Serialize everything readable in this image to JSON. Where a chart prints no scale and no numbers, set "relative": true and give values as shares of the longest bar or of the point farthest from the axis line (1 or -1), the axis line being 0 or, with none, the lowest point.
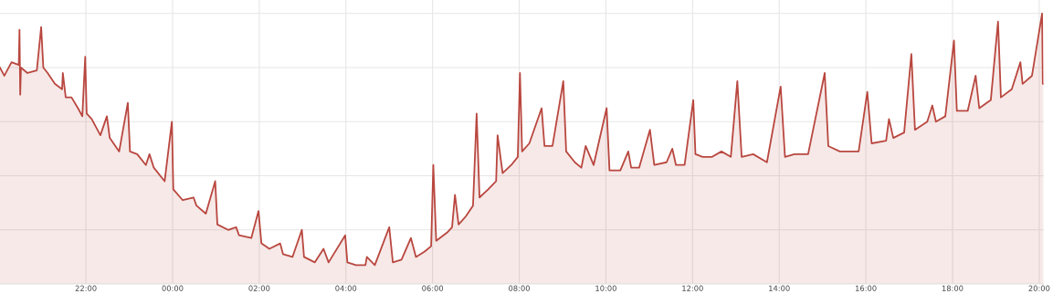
{
  "chart_data": {
    "type": "area",
    "relative": true,
    "grid": true,
    "xlim": [
      "2000-01-01T20:01",
      "2000-01-02T20:06"
    ],
    "xticks": [
      {
        "value": "2000-01-01T22:00",
        "label": "22:00"
      },
      {
        "value": "2000-01-02T00:00",
        "label": "00:00"
      },
      {
        "value": "2000-01-02T02:00",
        "label": "02:00"
      },
      {
        "value": "2000-01-02T04:00",
        "label": "04:00"
      },
      {
        "value": "2000-01-02T06:00",
        "label": "06:00"
      },
      {
        "value": "2000-01-02T08:00",
        "label": "08:00"
      },
      {
        "value": "2000-01-02T10:00",
        "label": "10:00"
      },
      {
        "value": "2000-01-02T12:00",
        "label": "12:00"
      },
      {
        "value": "2000-01-02T14:00",
        "label": "14:00"
      },
      {
        "value": "2000-01-02T16:00",
        "label": "16:00"
      },
      {
        "value": "2000-01-02T18:00",
        "label": "18:00"
      },
      {
        "value": "2000-01-02T20:00",
        "label": "20:00"
      }
    ],
    "series": [
      {
        "color": "#b9473f",
        "x": [
          "2000-01-01T20:01",
          "2000-01-01T20:07",
          "2000-01-01T20:17",
          "2000-01-01T20:27",
          "2000-01-01T20:28",
          "2000-01-01T20:29",
          "2000-01-01T20:30",
          "2000-01-01T20:39",
          "2000-01-01T20:52",
          "2000-01-01T20:58",
          "2000-01-01T21:01",
          "2000-01-01T21:07",
          "2000-01-01T21:17",
          "2000-01-01T21:27",
          "2000-01-01T21:28",
          "2000-01-01T21:32",
          "2000-01-01T21:40",
          "2000-01-01T21:49",
          "2000-01-01T21:55",
          "2000-01-01T21:59",
          "2000-01-01T22:01",
          "2000-01-01T22:08",
          "2000-01-01T22:20",
          "2000-01-01T22:29",
          "2000-01-01T22:33",
          "2000-01-01T22:46",
          "2000-01-01T22:58",
          "2000-01-01T23:01",
          "2000-01-01T23:11",
          "2000-01-01T23:23",
          "2000-01-01T23:28",
          "2000-01-01T23:34",
          "2000-01-01T23:49",
          "2000-01-01T23:59",
          "2000-01-02T00:01",
          "2000-01-02T00:14",
          "2000-01-02T00:29",
          "2000-01-02T00:33",
          "2000-01-02T00:46",
          "2000-01-02T00:59",
          "2000-01-02T01:02",
          "2000-01-02T01:17",
          "2000-01-02T01:28",
          "2000-01-02T01:32",
          "2000-01-02T01:49",
          "2000-01-02T01:59",
          "2000-01-02T02:03",
          "2000-01-02T02:14",
          "2000-01-02T02:29",
          "2000-01-02T02:33",
          "2000-01-02T02:46",
          "2000-01-02T02:59",
          "2000-01-02T03:02",
          "2000-01-02T03:17",
          "2000-01-02T03:29",
          "2000-01-02T03:36",
          "2000-01-02T03:59",
          "2000-01-02T04:02",
          "2000-01-02T04:14",
          "2000-01-02T04:20",
          "2000-01-02T04:27",
          "2000-01-02T04:29",
          "2000-01-02T04:40",
          "2000-01-02T05:00",
          "2000-01-02T05:05",
          "2000-01-02T05:17",
          "2000-01-02T05:30",
          "2000-01-02T05:37",
          "2000-01-02T05:49",
          "2000-01-02T05:58",
          "2000-01-02T06:01",
          "2000-01-02T06:05",
          "2000-01-02T06:20",
          "2000-01-02T06:27",
          "2000-01-02T06:31",
          "2000-01-02T06:36",
          "2000-01-02T06:46",
          "2000-01-02T06:56",
          "2000-01-02T07:01",
          "2000-01-02T07:05",
          "2000-01-02T07:17",
          "2000-01-02T07:28",
          "2000-01-02T07:30",
          "2000-01-02T07:37",
          "2000-01-02T07:49",
          "2000-01-02T07:58",
          "2000-01-02T08:01",
          "2000-01-02T08:04",
          "2000-01-02T08:14",
          "2000-01-02T08:31",
          "2000-01-02T08:35",
          "2000-01-02T08:46",
          "2000-01-02T09:01",
          "2000-01-02T09:05",
          "2000-01-02T09:17",
          "2000-01-02T09:26",
          "2000-01-02T09:32",
          "2000-01-02T09:43",
          "2000-01-02T10:01",
          "2000-01-02T10:05",
          "2000-01-02T10:20",
          "2000-01-02T10:31",
          "2000-01-02T10:35",
          "2000-01-02T10:46",
          "2000-01-02T11:01",
          "2000-01-02T11:07",
          "2000-01-02T11:24",
          "2000-01-02T11:32",
          "2000-01-02T11:37",
          "2000-01-02T11:49",
          "2000-01-02T12:01",
          "2000-01-02T12:04",
          "2000-01-02T12:14",
          "2000-01-02T12:27",
          "2000-01-02T12:40",
          "2000-01-02T12:53",
          "2000-01-02T13:02",
          "2000-01-02T13:08",
          "2000-01-02T13:24",
          "2000-01-02T13:43",
          "2000-01-02T14:02",
          "2000-01-02T14:08",
          "2000-01-02T14:21",
          "2000-01-02T14:40",
          "2000-01-02T15:03",
          "2000-01-02T15:08",
          "2000-01-02T15:24",
          "2000-01-02T15:50",
          "2000-01-02T16:02",
          "2000-01-02T16:08",
          "2000-01-02T16:28",
          "2000-01-02T16:32",
          "2000-01-02T16:38",
          "2000-01-02T16:53",
          "2000-01-02T17:03",
          "2000-01-02T17:08",
          "2000-01-02T17:25",
          "2000-01-02T17:32",
          "2000-01-02T17:37",
          "2000-01-02T17:50",
          "2000-01-02T18:02",
          "2000-01-02T18:06",
          "2000-01-02T18:21",
          "2000-01-02T18:32",
          "2000-01-02T18:37",
          "2000-01-02T18:53",
          "2000-01-02T19:03",
          "2000-01-02T19:07",
          "2000-01-02T19:22",
          "2000-01-02T19:34",
          "2000-01-02T19:37",
          "2000-01-02T19:50",
          "2000-01-02T20:04",
          "2000-01-02T20:05",
          "2000-01-02T20:06"
        ],
        "values": [
          0.8,
          0.77,
          0.82,
          0.81,
          0.94,
          0.7,
          0.8,
          0.78,
          0.79,
          0.95,
          0.8,
          0.78,
          0.74,
          0.72,
          0.78,
          0.69,
          0.69,
          0.65,
          0.62,
          0.84,
          0.63,
          0.61,
          0.55,
          0.62,
          0.54,
          0.49,
          0.67,
          0.49,
          0.48,
          0.44,
          0.48,
          0.43,
          0.38,
          0.6,
          0.35,
          0.31,
          0.32,
          0.29,
          0.26,
          0.38,
          0.22,
          0.2,
          0.21,
          0.18,
          0.17,
          0.27,
          0.15,
          0.13,
          0.15,
          0.11,
          0.1,
          0.2,
          0.1,
          0.08,
          0.13,
          0.08,
          0.18,
          0.08,
          0.07,
          0.07,
          0.07,
          0.1,
          0.07,
          0.21,
          0.08,
          0.09,
          0.17,
          0.1,
          0.12,
          0.14,
          0.44,
          0.16,
          0.19,
          0.21,
          0.33,
          0.22,
          0.25,
          0.29,
          0.63,
          0.32,
          0.35,
          0.38,
          0.55,
          0.41,
          0.44,
          0.47,
          0.78,
          0.49,
          0.52,
          0.65,
          0.51,
          0.51,
          0.75,
          0.49,
          0.45,
          0.43,
          0.51,
          0.44,
          0.65,
          0.42,
          0.42,
          0.49,
          0.43,
          0.43,
          0.57,
          0.44,
          0.45,
          0.5,
          0.44,
          0.44,
          0.68,
          0.48,
          0.47,
          0.47,
          0.49,
          0.47,
          0.75,
          0.47,
          0.48,
          0.45,
          0.73,
          0.47,
          0.48,
          0.48,
          0.78,
          0.51,
          0.49,
          0.49,
          0.71,
          0.52,
          0.53,
          0.61,
          0.54,
          0.56,
          0.85,
          0.57,
          0.6,
          0.66,
          0.6,
          0.62,
          0.9,
          0.64,
          0.64,
          0.77,
          0.65,
          0.68,
          0.97,
          0.69,
          0.72,
          0.82,
          0.74,
          0.77,
          1.0,
          0.74,
          0.74
        ]
      }
    ]
  }
}
